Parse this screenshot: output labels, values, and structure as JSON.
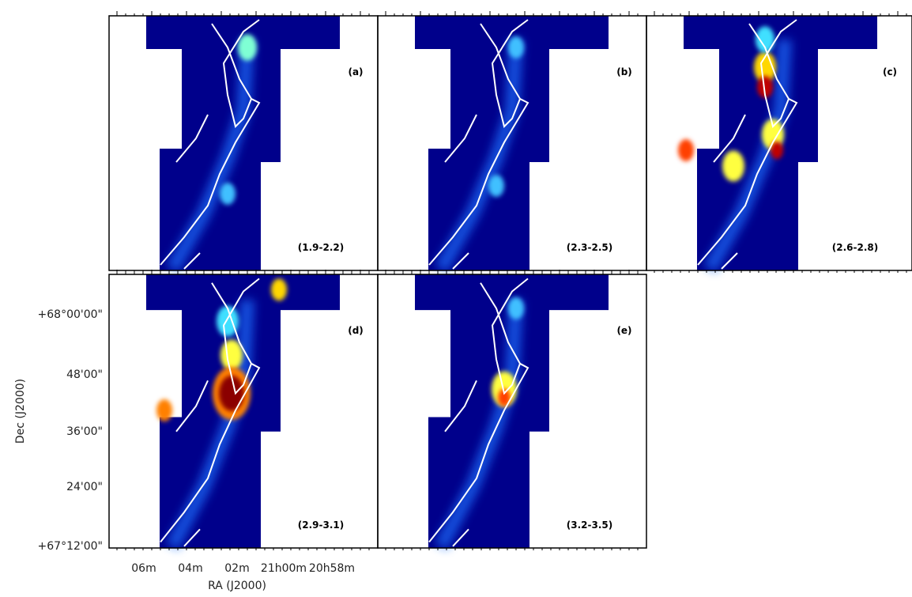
{
  "figure": {
    "x_axis_label": "RA (J2000)",
    "y_axis_label": "Dec (J2000)",
    "x_tick_labels": [
      "06m",
      "04m",
      "02m",
      "21h00m",
      "20h58m"
    ],
    "y_tick_labels": [
      "+68°00'00\"",
      "48'00\"",
      "36'00\"",
      "24'00\"",
      "+67°12'00\""
    ],
    "panels": [
      {
        "tag": "(a)",
        "range": "(1.9-2.2)"
      },
      {
        "tag": "(b)",
        "range": "(2.3-2.5)"
      },
      {
        "tag": "(c)",
        "range": "(2.6-2.8)"
      },
      {
        "tag": "(d)",
        "range": "(2.9-3.1)"
      },
      {
        "tag": "(e)",
        "range": "(3.2-3.5)"
      }
    ]
  }
}
